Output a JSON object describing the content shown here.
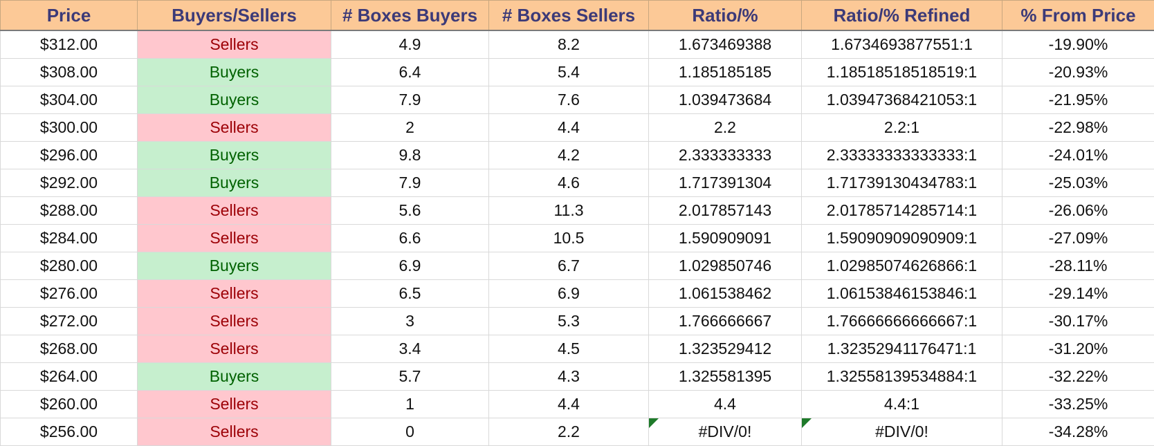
{
  "columns": [
    "Price",
    "Buyers/Sellers",
    "# Boxes Buyers",
    "# Boxes Sellers",
    "Ratio/%",
    "Ratio/% Refined",
    "% From Price"
  ],
  "colors": {
    "header_bg": "#fcc997",
    "header_text": "#3c3a78",
    "sellers_bg": "#ffc7ce",
    "sellers_text": "#9c0006",
    "buyers_bg": "#c6efce",
    "buyers_text": "#006100",
    "error_flag": "#1e7a2a"
  },
  "rows": [
    {
      "price": "$312.00",
      "side": "Sellers",
      "boxes_buyers": "4.9",
      "boxes_sellers": "8.2",
      "ratio": "1.673469388",
      "ratio_refined": "1.6734693877551:1",
      "pct_from_price": "-19.90%"
    },
    {
      "price": "$308.00",
      "side": "Buyers",
      "boxes_buyers": "6.4",
      "boxes_sellers": "5.4",
      "ratio": "1.185185185",
      "ratio_refined": "1.18518518518519:1",
      "pct_from_price": "-20.93%"
    },
    {
      "price": "$304.00",
      "side": "Buyers",
      "boxes_buyers": "7.9",
      "boxes_sellers": "7.6",
      "ratio": "1.039473684",
      "ratio_refined": "1.03947368421053:1",
      "pct_from_price": "-21.95%"
    },
    {
      "price": "$300.00",
      "side": "Sellers",
      "boxes_buyers": "2",
      "boxes_sellers": "4.4",
      "ratio": "2.2",
      "ratio_refined": "2.2:1",
      "pct_from_price": "-22.98%"
    },
    {
      "price": "$296.00",
      "side": "Buyers",
      "boxes_buyers": "9.8",
      "boxes_sellers": "4.2",
      "ratio": "2.333333333",
      "ratio_refined": "2.33333333333333:1",
      "pct_from_price": "-24.01%"
    },
    {
      "price": "$292.00",
      "side": "Buyers",
      "boxes_buyers": "7.9",
      "boxes_sellers": "4.6",
      "ratio": "1.717391304",
      "ratio_refined": "1.71739130434783:1",
      "pct_from_price": "-25.03%"
    },
    {
      "price": "$288.00",
      "side": "Sellers",
      "boxes_buyers": "5.6",
      "boxes_sellers": "11.3",
      "ratio": "2.017857143",
      "ratio_refined": "2.01785714285714:1",
      "pct_from_price": "-26.06%"
    },
    {
      "price": "$284.00",
      "side": "Sellers",
      "boxes_buyers": "6.6",
      "boxes_sellers": "10.5",
      "ratio": "1.590909091",
      "ratio_refined": "1.59090909090909:1",
      "pct_from_price": "-27.09%"
    },
    {
      "price": "$280.00",
      "side": "Buyers",
      "boxes_buyers": "6.9",
      "boxes_sellers": "6.7",
      "ratio": "1.029850746",
      "ratio_refined": "1.02985074626866:1",
      "pct_from_price": "-28.11%"
    },
    {
      "price": "$276.00",
      "side": "Sellers",
      "boxes_buyers": "6.5",
      "boxes_sellers": "6.9",
      "ratio": "1.061538462",
      "ratio_refined": "1.06153846153846:1",
      "pct_from_price": "-29.14%"
    },
    {
      "price": "$272.00",
      "side": "Sellers",
      "boxes_buyers": "3",
      "boxes_sellers": "5.3",
      "ratio": "1.766666667",
      "ratio_refined": "1.76666666666667:1",
      "pct_from_price": "-30.17%"
    },
    {
      "price": "$268.00",
      "side": "Sellers",
      "boxes_buyers": "3.4",
      "boxes_sellers": "4.5",
      "ratio": "1.323529412",
      "ratio_refined": "1.32352941176471:1",
      "pct_from_price": "-31.20%"
    },
    {
      "price": "$264.00",
      "side": "Buyers",
      "boxes_buyers": "5.7",
      "boxes_sellers": "4.3",
      "ratio": "1.325581395",
      "ratio_refined": "1.32558139534884:1",
      "pct_from_price": "-32.22%"
    },
    {
      "price": "$260.00",
      "side": "Sellers",
      "boxes_buyers": "1",
      "boxes_sellers": "4.4",
      "ratio": "4.4",
      "ratio_refined": "4.4:1",
      "pct_from_price": "-33.25%"
    },
    {
      "price": "$256.00",
      "side": "Sellers",
      "boxes_buyers": "0",
      "boxes_sellers": "2.2",
      "ratio": "#DIV/0!",
      "ratio_refined": "#DIV/0!",
      "pct_from_price": "-34.28%"
    }
  ]
}
